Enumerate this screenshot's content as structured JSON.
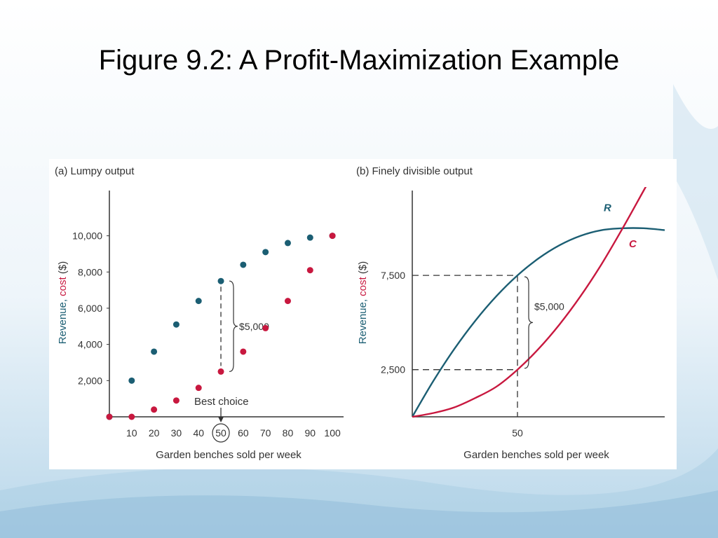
{
  "slide": {
    "title": "Figure 9.2: A Profit-Maximization Example"
  },
  "colors": {
    "revenue": "#1b5e73",
    "cost": "#c8183f",
    "axis": "#333333",
    "text": "#333333"
  },
  "chart_data": [
    {
      "type": "scatter",
      "title": "(a) Lumpy output",
      "xlabel": "Garden benches sold per week",
      "ylabel_parts": [
        "Revenue, ",
        "cost",
        " ($)"
      ],
      "xlim": [
        0,
        105
      ],
      "ylim": [
        0,
        12500
      ],
      "x_ticks": [
        10,
        20,
        30,
        40,
        50,
        60,
        70,
        80,
        90,
        100
      ],
      "x_tick_labels": [
        "10",
        "20",
        "30",
        "40",
        "50",
        "60",
        "70",
        "80",
        "90",
        "100"
      ],
      "y_ticks": [
        2000,
        4000,
        6000,
        8000,
        10000
      ],
      "y_tick_labels": [
        "2,000",
        "4,000",
        "6,000",
        "8,000",
        "10,000"
      ],
      "circled_tick": "50",
      "series": [
        {
          "color_key": "revenue",
          "x": [
            0,
            10,
            20,
            30,
            40,
            50,
            60,
            70,
            80,
            90,
            100
          ],
          "y": [
            0,
            2000,
            3600,
            5100,
            6400,
            7500,
            8400,
            9100,
            9600,
            9900,
            10000
          ]
        },
        {
          "color_key": "cost",
          "x": [
            0,
            10,
            20,
            30,
            40,
            50,
            60,
            70,
            80,
            90,
            100
          ],
          "y": [
            0,
            0,
            400,
            900,
            1600,
            2500,
            3600,
            4900,
            6400,
            8100,
            10000
          ]
        }
      ],
      "annotations": {
        "gap_label": "$5,000",
        "gap_x": 50,
        "gap_top": 7500,
        "gap_bottom": 2500,
        "best_choice_label": "Best choice",
        "best_choice_x": 50
      }
    },
    {
      "type": "line",
      "title": "(b) Finely divisible output",
      "xlabel": "Garden benches sold per week",
      "ylabel_parts": [
        "Revenue, ",
        "cost",
        " ($)"
      ],
      "xlim": [
        0,
        120
      ],
      "ylim": [
        0,
        12000
      ],
      "x_ticks": [
        50
      ],
      "x_tick_labels": [
        "50"
      ],
      "y_ticks": [
        2500,
        7500
      ],
      "y_tick_labels": [
        "2,500",
        "7,500"
      ],
      "series": [
        {
          "name": "R",
          "color_key": "revenue",
          "x": [
            0,
            10,
            20,
            30,
            40,
            50,
            60,
            70,
            80,
            90,
            100,
            110,
            120
          ],
          "y": [
            0,
            1900,
            3600,
            5100,
            6400,
            7500,
            8400,
            9100,
            9600,
            9900,
            10000,
            10000,
            9900
          ]
        },
        {
          "name": "C",
          "color_key": "cost",
          "x": [
            0,
            10,
            20,
            30,
            40,
            50,
            60,
            70,
            80,
            90,
            100,
            110,
            120
          ],
          "y": [
            0,
            200,
            500,
            1000,
            1600,
            2500,
            3600,
            4900,
            6400,
            8100,
            10000,
            12000,
            14000
          ]
        }
      ],
      "annotations": {
        "gap_label": "$5,000",
        "gap_x": 50,
        "gap_top": 7500,
        "gap_bottom": 2500
      }
    }
  ]
}
